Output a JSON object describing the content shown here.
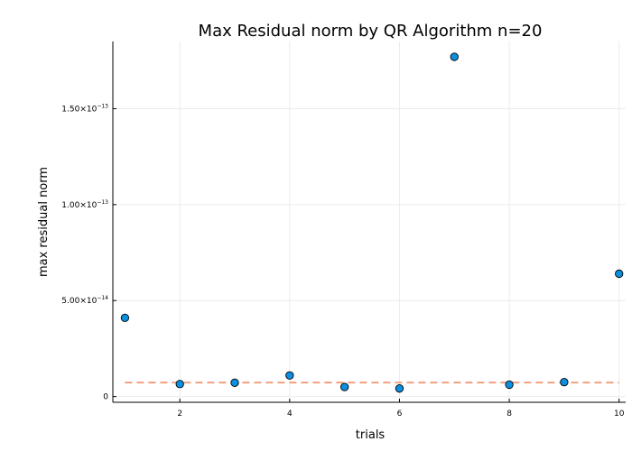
{
  "chart_data": {
    "type": "scatter",
    "title": "Max Residual norm by QR Algorithm  n=20",
    "xlabel": "trials",
    "ylabel": "max residual norm",
    "xlim": [
      0.78,
      10.12
    ],
    "ylim": [
      -3e-15,
      1.85e-13
    ],
    "x_ticks": [
      2,
      4,
      6,
      8,
      10
    ],
    "x_tick_labels": [
      "2",
      "4",
      "6",
      "8",
      "10"
    ],
    "y_ticks": [
      0,
      5e-14,
      1e-13,
      1.5e-13
    ],
    "y_tick_labels": [
      {
        "base": "0",
        "exp": ""
      },
      {
        "base": "5.00×10",
        "exp": "−14"
      },
      {
        "base": "1.00×10",
        "exp": "−13"
      },
      {
        "base": "1.50×10",
        "exp": "−13"
      }
    ],
    "grid": true,
    "legend": "none",
    "series": [
      {
        "x": [
          1,
          2,
          3,
          4,
          5,
          6,
          7,
          8,
          9,
          10
        ],
        "y": [
          4.1e-14,
          6.5e-15,
          7.2e-15,
          1.1e-14,
          5e-15,
          4.2e-15,
          1.77e-13,
          6.2e-15,
          7.5e-15,
          6.4e-14
        ],
        "color": "#0d8fe0"
      }
    ],
    "reference_line": {
      "y": 7.3e-15,
      "x_start": 1,
      "x_end": 10,
      "style": "dashed",
      "color": "#f0a07e"
    }
  }
}
